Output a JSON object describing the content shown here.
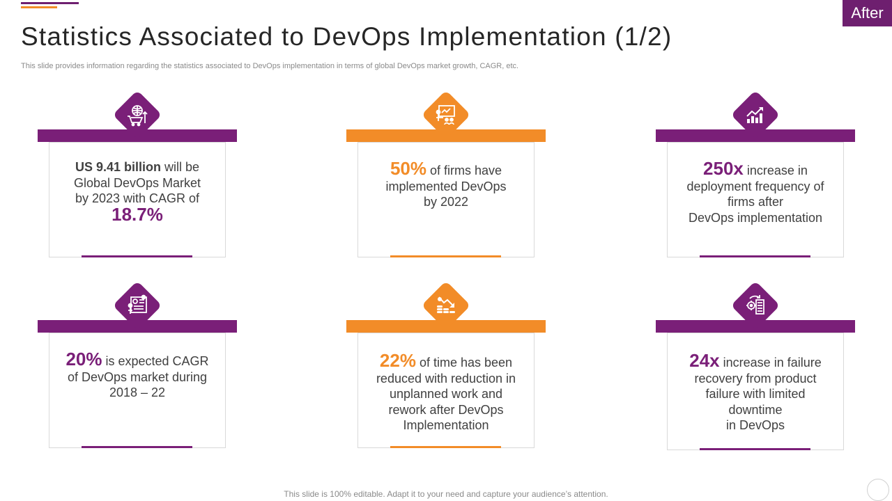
{
  "header": {
    "title": "Statistics Associated to DevOps Implementation (1/2)",
    "subtitle": "This slide provides information regarding the statistics associated to DevOps implementation in terms of global DevOps market growth, CAGR, etc.",
    "badge": "After"
  },
  "colors": {
    "purple": "#7a1f78",
    "orange": "#f28c28"
  },
  "cards": [
    {
      "icon": "globe-cart-icon",
      "lead": "US 9.41 billion",
      "line1": " will be",
      "line2": "Global DevOps Market",
      "line3": "by 2023 with CAGR of",
      "highlight": "18.7%"
    },
    {
      "icon": "presentation-icon",
      "highlight": "50%",
      "line1": " of firms have",
      "line2": "implemented DevOps",
      "line3": "by 2022"
    },
    {
      "icon": "growth-chart-icon",
      "highlight": "250x",
      "line1": " increase in",
      "line2": "deployment frequency of",
      "line3": "firms after",
      "line4": "DevOps implementation"
    },
    {
      "icon": "analytics-board-icon",
      "highlight": "20%",
      "line1": " is expected CAGR",
      "line2": "of DevOps market during",
      "line3": "2018 – 22"
    },
    {
      "icon": "coins-decline-icon",
      "highlight": "22%",
      "line1": " of time has been",
      "line2": "reduced with reduction in",
      "line3": "unplanned work and",
      "line4": "rework after DevOps",
      "line5": "Implementation"
    },
    {
      "icon": "recovery-gear-icon",
      "highlight": "24x",
      "line1": " increase in failure",
      "line2": "recovery from product",
      "line3": "failure with limited",
      "line4": "downtime",
      "line5": "in DevOps"
    }
  ],
  "footer": {
    "note": "This slide is 100% editable. Adapt it to your need and capture your audience’s attention."
  }
}
